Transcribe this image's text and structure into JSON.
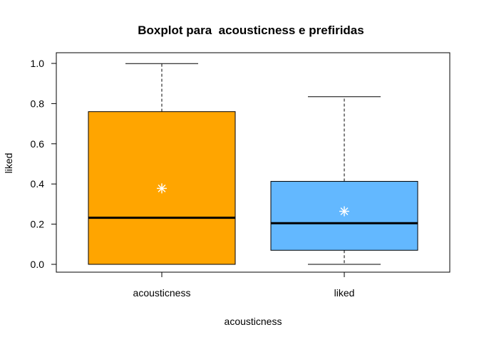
{
  "chart_data": {
    "type": "boxplot",
    "title": "Boxplot para  acousticness e prefiridas",
    "xlabel": "acousticness",
    "ylabel": "liked",
    "ylim": [
      0.0,
      1.0
    ],
    "yticks": [
      "0.0",
      "0.2",
      "0.4",
      "0.6",
      "0.8",
      "1.0"
    ],
    "grid": false,
    "legend": "none",
    "categories": [
      "acousticness",
      "liked"
    ],
    "boxes": [
      {
        "whisker_low": 0.0,
        "q1": 0.0,
        "median": 0.232,
        "q3": 0.76,
        "whisker_high": 0.999,
        "mean": 0.378,
        "fill": "#FFA500"
      },
      {
        "whisker_low": 0.0,
        "q1": 0.07,
        "median": 0.205,
        "q3": 0.413,
        "whisker_high": 0.834,
        "mean": 0.264,
        "fill": "#63B8FF"
      }
    ],
    "mean_marker_color": "#ffffff"
  }
}
